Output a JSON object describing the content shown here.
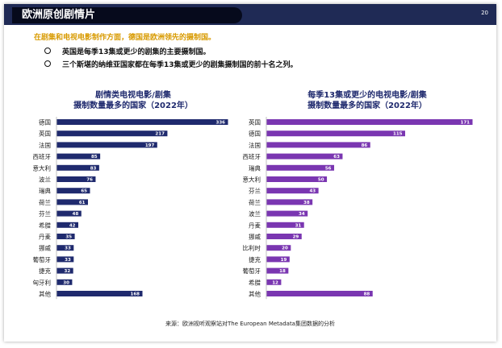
{
  "header": {
    "title": "欧洲原创剧情片",
    "page_number": "20"
  },
  "lead": "在剧集和电视电影制作方面，德国是欧洲领先的摄制国。",
  "bullets": [
    "英国是每季13集或更少的剧集的主要摄制国。",
    "三个斯堪的纳维亚国家都在每季13集或更少的剧集摄制国的前十名之列。"
  ],
  "colors": {
    "left_bar": "#1f2a6e",
    "right_bar": "#7a36b1",
    "header": "#1f2a55",
    "accent": "#d89a00"
  },
  "chart_data": [
    {
      "type": "bar",
      "orientation": "horizontal",
      "title_line1": "剧情类电视电影/剧集",
      "title_line2": "摄制数量最多的国家（2022年）",
      "categories": [
        "德国",
        "英国",
        "法国",
        "西班牙",
        "意大利",
        "波兰",
        "瑞典",
        "荷兰",
        "芬兰",
        "希腊",
        "丹麦",
        "挪威",
        "葡萄牙",
        "捷克",
        "匈牙利",
        "其他"
      ],
      "values": [
        336,
        217,
        197,
        85,
        83,
        76,
        65,
        61,
        48,
        42,
        35,
        33,
        33,
        32,
        30,
        168
      ]
    },
    {
      "type": "bar",
      "orientation": "horizontal",
      "title_line1": "每季13集或更少的电视电影/剧集",
      "title_line2": "摄制数量最多的国家（2022年）",
      "categories": [
        "英国",
        "德国",
        "法国",
        "西班牙",
        "瑞典",
        "意大利",
        "芬兰",
        "荷兰",
        "波兰",
        "丹麦",
        "挪威",
        "比利时",
        "捷克",
        "葡萄牙",
        "希腊",
        "其他"
      ],
      "values": [
        171,
        115,
        86,
        63,
        56,
        50,
        43,
        38,
        34,
        31,
        29,
        20,
        19,
        18,
        12,
        88
      ]
    }
  ],
  "source": "来源：欧洲视听观察站对The European Metadata集团数据的分析"
}
